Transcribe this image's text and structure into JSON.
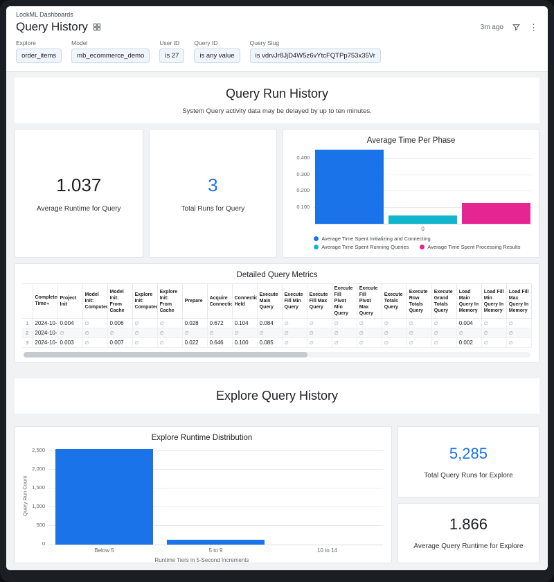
{
  "header": {
    "breadcrumb": "LookML Dashboards",
    "title": "Query History",
    "timestamp": "3m ago"
  },
  "filters": [
    {
      "id": "explore",
      "label": "Explore",
      "value": "order_items"
    },
    {
      "id": "model",
      "label": "Model",
      "value": "mb_ecommerce_demo"
    },
    {
      "id": "user-id",
      "label": "User ID",
      "value": "is 27"
    },
    {
      "id": "query-id",
      "label": "Query ID",
      "value": "is any value"
    },
    {
      "id": "query-slug",
      "label": "Query Slug",
      "value": "is vdrvJr8JjD4W5z6vYtcFQTPp753x35Vr"
    }
  ],
  "sections": {
    "run_history": {
      "title": "Query Run History",
      "subtitle": "System Query activity data may be delayed by up to ten minutes."
    },
    "explore_history": {
      "title": "Explore Query History"
    }
  },
  "colors": {
    "accent_blue": "#1a73e8",
    "teal": "#12b5cb",
    "magenta": "#e52592",
    "dark_text": "#202124"
  },
  "kpis": {
    "avg_runtime_query": {
      "value": "1.037",
      "label": "Average Runtime for Query",
      "color": "dark_text"
    },
    "total_runs_query": {
      "value": "3",
      "label": "Total Runs for Query",
      "color": "accent_blue"
    },
    "total_runs_explore": {
      "value": "5,285",
      "label": "Total Query Runs for Explore",
      "color": "accent_blue"
    },
    "avg_runtime_explore": {
      "value": "1.866",
      "label": "Average Query Runtime for Explore",
      "color": "dark_text"
    }
  },
  "table": {
    "title": "Detailed Query Metrics",
    "null_symbol": "∅",
    "columns": [
      "Completed Time",
      "Project Init",
      "Model Init: Computed",
      "Model Init: From Cache",
      "Explore Init: Computed",
      "Explore Init: From Cache",
      "Prepare",
      "Acquire Connection",
      "Connection Held",
      "Execute Main Query",
      "Execute Fill Min Query",
      "Execute Fill Max Query",
      "Execute Fill Pivot Min Query",
      "Execute Fill Pivot Max Query",
      "Execute Totals Query",
      "Execute Row Totals Query",
      "Execute Grand Totals Query",
      "Load Main Query In Memory",
      "Load Fill Min Query In Memory",
      "Load Fill Max Query In Memory"
    ],
    "rows": [
      {
        "num": "1",
        "cells": [
          "2024-10-…",
          "0.004",
          "∅",
          "0.006",
          "∅",
          "∅",
          "0.028",
          "0.672",
          "0.104",
          "0.084",
          "∅",
          "∅",
          "∅",
          "∅",
          "∅",
          "∅",
          "∅",
          "0.004",
          "∅",
          "∅"
        ]
      },
      {
        "num": "2",
        "cells": [
          "2024-10-…",
          "∅",
          "∅",
          "∅",
          "∅",
          "∅",
          "∅",
          "∅",
          "∅",
          "∅",
          "∅",
          "∅",
          "∅",
          "∅",
          "∅",
          "∅",
          "∅",
          "∅",
          "∅",
          "∅"
        ]
      },
      {
        "num": "3",
        "cells": [
          "2024-10-…",
          "0.003",
          "∅",
          "0.007",
          "∅",
          "∅",
          "0.022",
          "0.646",
          "0.100",
          "0.085",
          "∅",
          "∅",
          "∅",
          "∅",
          "∅",
          "∅",
          "∅",
          "0.002",
          "∅",
          "∅"
        ]
      }
    ]
  },
  "chart_data": [
    {
      "type": "bar",
      "title": "Average Time Per Phase",
      "series": [
        {
          "name": "Average Time Spent Initializing and Connecting",
          "value": 0.455,
          "color": "#1a73e8"
        },
        {
          "name": "Average Time Spent Running Queries",
          "value": 0.052,
          "color": "#12b5cb"
        },
        {
          "name": "Average Time Spent Processing Results",
          "value": 0.127,
          "color": "#e52592"
        }
      ],
      "yticks": [
        {
          "v": 0.1,
          "label": "0.100"
        },
        {
          "v": 0.2,
          "label": "0.200"
        },
        {
          "v": 0.3,
          "label": "0.300"
        },
        {
          "v": 0.4,
          "label": "0.400"
        }
      ],
      "ylim": [
        0,
        0.47
      ],
      "xtick_label": "0",
      "legend_position": "bottom"
    },
    {
      "type": "bar",
      "title": "Explore Runtime Distribution",
      "categories": [
        "Below 5",
        "5 to 9",
        "10 to 14"
      ],
      "values": [
        2550,
        130,
        0
      ],
      "bar_color": "#1a73e8",
      "ylabel": "Query Run Count",
      "xlabel": "Runtime Tiers in 5-Second Increments",
      "yticks": [
        {
          "v": 0,
          "label": "0"
        },
        {
          "v": 500,
          "label": "500"
        },
        {
          "v": 1000,
          "label": "1,000"
        },
        {
          "v": 1500,
          "label": "1,500"
        },
        {
          "v": 2000,
          "label": "2,000"
        },
        {
          "v": 2500,
          "label": "2,500"
        }
      ],
      "ylim": [
        0,
        2650
      ]
    }
  ]
}
